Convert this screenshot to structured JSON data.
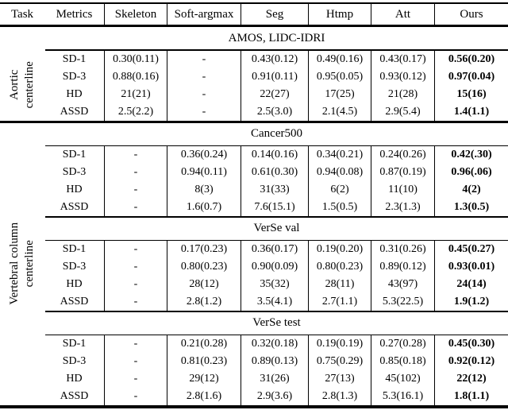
{
  "paper_table": {
    "header": {
      "columns": [
        "Task",
        "Metrics",
        "Skeleton",
        "Soft-argmax",
        "Seg",
        "Htmp",
        "Att",
        "Ours"
      ]
    },
    "task_groups": [
      {
        "lines": [
          "Aortic",
          "centerline"
        ]
      },
      {
        "lines": [
          "Vertebral column",
          "centerline"
        ]
      }
    ],
    "emphasis_note": "Ours column values are bold",
    "colors": {
      "text": "#000000",
      "rules": "#000000",
      "background": "#ffffff"
    },
    "sections": [
      {
        "title": "AMOS, LIDC-IDRI",
        "rows": [
          {
            "metric": "SD-1",
            "values": [
              "0.30(0.11)",
              "-",
              "0.43(0.12)",
              "0.49(0.16)",
              "0.43(0.17)",
              "0.56(0.20)"
            ]
          },
          {
            "metric": "SD-3",
            "values": [
              "0.88(0.16)",
              "-",
              "0.91(0.11)",
              "0.95(0.05)",
              "0.93(0.12)",
              "0.97(0.04)"
            ]
          },
          {
            "metric": "HD",
            "values": [
              "21(21)",
              "-",
              "22(27)",
              "17(25)",
              "21(28)",
              "15(16)"
            ]
          },
          {
            "metric": "ASSD",
            "values": [
              "2.5(2.2)",
              "-",
              "2.5(3.0)",
              "2.1(4.5)",
              "2.9(5.4)",
              "1.4(1.1)"
            ]
          }
        ]
      },
      {
        "title": "Cancer500",
        "rows": [
          {
            "metric": "SD-1",
            "values": [
              "-",
              "0.36(0.24)",
              "0.14(0.16)",
              "0.34(0.21)",
              "0.24(0.26)",
              "0.42(.30)"
            ]
          },
          {
            "metric": "SD-3",
            "values": [
              "-",
              "0.94(0.11)",
              "0.61(0.30)",
              "0.94(0.08)",
              "0.87(0.19)",
              "0.96(.06)"
            ]
          },
          {
            "metric": "HD",
            "values": [
              "-",
              "8(3)",
              "31(33)",
              "6(2)",
              "11(10)",
              "4(2)"
            ]
          },
          {
            "metric": "ASSD",
            "values": [
              "-",
              "1.6(0.7)",
              "7.6(15.1)",
              "1.5(0.5)",
              "2.3(1.3)",
              "1.3(0.5)"
            ]
          }
        ]
      },
      {
        "title": "VerSe val",
        "rows": [
          {
            "metric": "SD-1",
            "values": [
              "-",
              "0.17(0.23)",
              "0.36(0.17)",
              "0.19(0.20)",
              "0.31(0.26)",
              "0.45(0.27)"
            ]
          },
          {
            "metric": "SD-3",
            "values": [
              "-",
              "0.80(0.23)",
              "0.90(0.09)",
              "0.80(0.23)",
              "0.89(0.12)",
              "0.93(0.01)"
            ]
          },
          {
            "metric": "HD",
            "values": [
              "-",
              "28(12)",
              "35(32)",
              "28(11)",
              "43(97)",
              "24(14)"
            ]
          },
          {
            "metric": "ASSD",
            "values": [
              "-",
              "2.8(1.2)",
              "3.5(4.1)",
              "2.7(1.1)",
              "5.3(22.5)",
              "1.9(1.2)"
            ]
          }
        ]
      },
      {
        "title": "VerSe test",
        "rows": [
          {
            "metric": "SD-1",
            "values": [
              "-",
              "0.21(0.28)",
              "0.32(0.18)",
              "0.19(0.19)",
              "0.27(0.28)",
              "0.45(0.30)"
            ]
          },
          {
            "metric": "SD-3",
            "values": [
              "-",
              "0.81(0.23)",
              "0.89(0.13)",
              "0.75(0.29)",
              "0.85(0.18)",
              "0.92(0.12)"
            ]
          },
          {
            "metric": "HD",
            "values": [
              "-",
              "29(12)",
              "31(26)",
              "27(13)",
              "45(102)",
              "22(12)"
            ]
          },
          {
            "metric": "ASSD",
            "values": [
              "-",
              "2.8(1.6)",
              "2.9(3.6)",
              "2.8(1.3)",
              "5.3(16.1)",
              "1.8(1.1)"
            ]
          }
        ]
      }
    ]
  }
}
